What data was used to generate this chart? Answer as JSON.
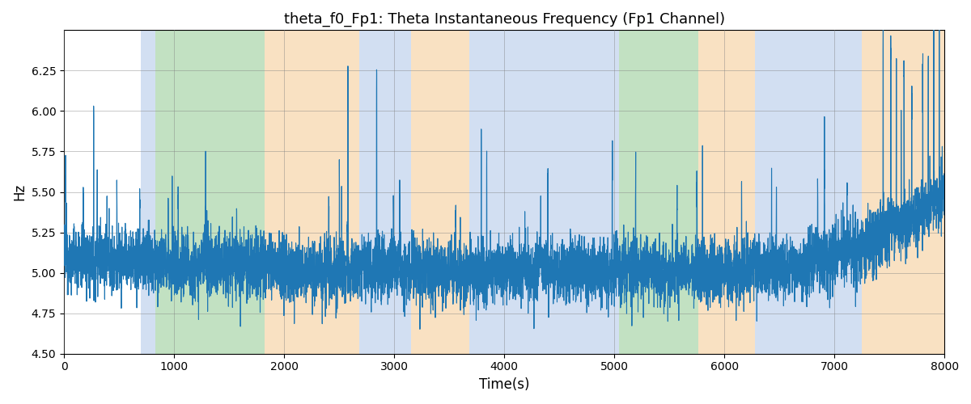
{
  "title": "theta_f0_Fp1: Theta Instantaneous Frequency (Fp1 Channel)",
  "xlabel": "Time(s)",
  "ylabel": "Hz",
  "xlim": [
    0,
    8000
  ],
  "ylim": [
    4.5,
    6.5
  ],
  "yticks": [
    4.5,
    4.75,
    5.0,
    5.25,
    5.5,
    5.75,
    6.0,
    6.25
  ],
  "xticks": [
    0,
    1000,
    2000,
    3000,
    4000,
    5000,
    6000,
    7000,
    8000
  ],
  "line_color": "#1f77b4",
  "line_width": 0.8,
  "bg_color": "#ffffff",
  "bands": [
    {
      "start": 700,
      "end": 830,
      "color": "#aec6e8",
      "alpha": 0.55
    },
    {
      "start": 830,
      "end": 1820,
      "color": "#90c990",
      "alpha": 0.55
    },
    {
      "start": 1820,
      "end": 2680,
      "color": "#f5c990",
      "alpha": 0.55
    },
    {
      "start": 2680,
      "end": 3150,
      "color": "#aec6e8",
      "alpha": 0.55
    },
    {
      "start": 3150,
      "end": 3680,
      "color": "#f5c990",
      "alpha": 0.55
    },
    {
      "start": 3680,
      "end": 4870,
      "color": "#aec6e8",
      "alpha": 0.55
    },
    {
      "start": 4870,
      "end": 5040,
      "color": "#aec6e8",
      "alpha": 0.55
    },
    {
      "start": 5040,
      "end": 5760,
      "color": "#90c990",
      "alpha": 0.55
    },
    {
      "start": 5760,
      "end": 6280,
      "color": "#f5c990",
      "alpha": 0.55
    },
    {
      "start": 6280,
      "end": 7250,
      "color": "#aec6e8",
      "alpha": 0.55
    },
    {
      "start": 7250,
      "end": 8000,
      "color": "#f5c990",
      "alpha": 0.55
    }
  ],
  "seed": 12345,
  "n_points": 8000,
  "base_freq": 5.1,
  "noise_std": 0.1
}
